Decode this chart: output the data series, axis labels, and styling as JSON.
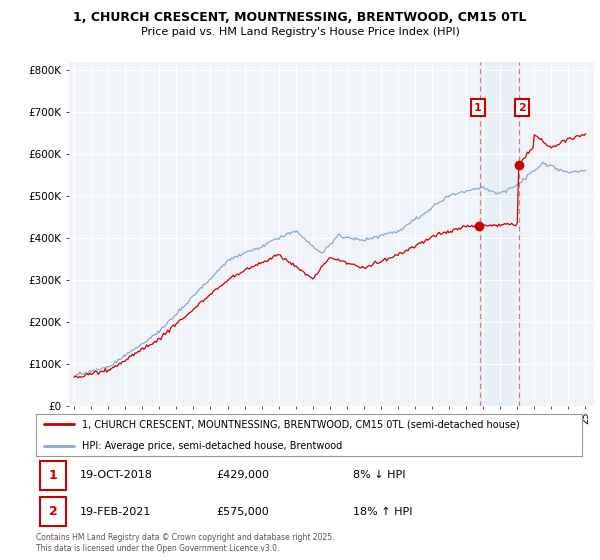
{
  "title": "1, CHURCH CRESCENT, MOUNTNESSING, BRENTWOOD, CM15 0TL",
  "subtitle": "Price paid vs. HM Land Registry's House Price Index (HPI)",
  "ylim": [
    0,
    820000
  ],
  "yticks": [
    0,
    100000,
    200000,
    300000,
    400000,
    500000,
    600000,
    700000,
    800000
  ],
  "ytick_labels": [
    "£0",
    "£100K",
    "£200K",
    "£300K",
    "£400K",
    "£500K",
    "£600K",
    "£700K",
    "£800K"
  ],
  "price_color": "#cc0000",
  "hpi_color": "#88aacc",
  "vline_color": "#cc0000",
  "sale1_year": 2018.79,
  "sale2_year": 2021.12,
  "sale1_price_val": 429000,
  "sale2_price_val": 575000,
  "sale1_date": "19-OCT-2018",
  "sale1_price": "£429,000",
  "sale1_pct": "8% ↓ HPI",
  "sale2_date": "19-FEB-2021",
  "sale2_price": "£575,000",
  "sale2_pct": "18% ↑ HPI",
  "legend_line1": "1, CHURCH CRESCENT, MOUNTNESSING, BRENTWOOD, CM15 0TL (semi-detached house)",
  "legend_line2": "HPI: Average price, semi-detached house, Brentwood",
  "footnote": "Contains HM Land Registry data © Crown copyright and database right 2025.\nThis data is licensed under the Open Government Licence v3.0.",
  "background_color": "#ffffff",
  "plot_bg_color": "#f0f4f8"
}
